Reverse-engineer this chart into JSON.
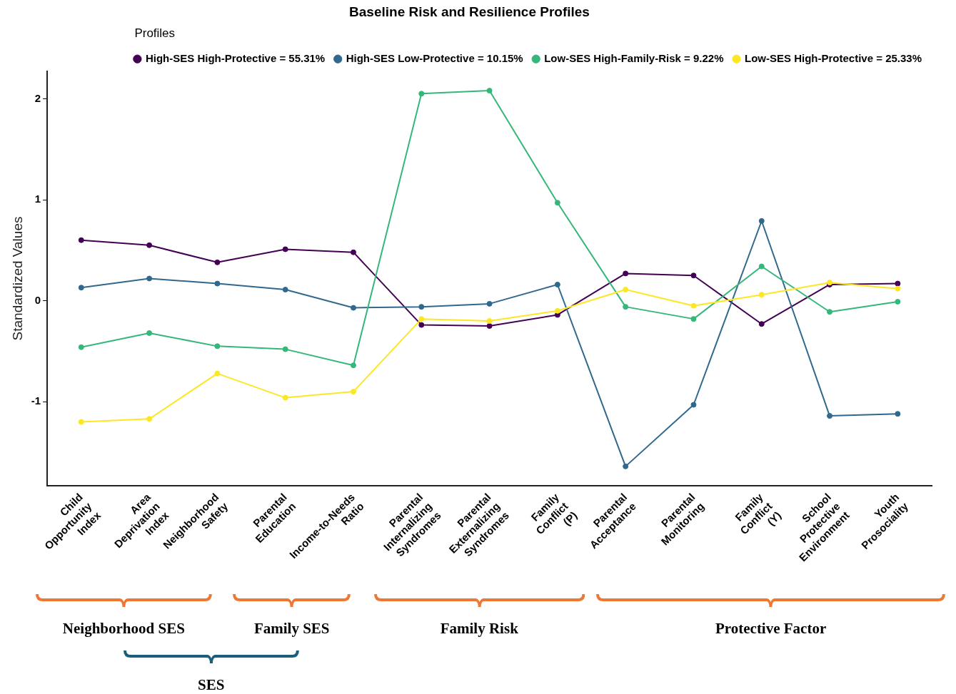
{
  "chart_data": {
    "type": "line",
    "title": "Baseline Risk and Resilience Profiles",
    "ylabel": "Standardized Values",
    "legend_title": "Profiles",
    "legend": "top",
    "grid": false,
    "marker": "circle",
    "line_style": "solid",
    "categories": [
      "Child Opportunity Index",
      "Area Deprivation Index",
      "Neighborhood Safety",
      "Parental Education",
      "Income-to-Needs Ratio",
      "Parental Internalizing Syndromes",
      "Parental Externalizing Syndromes",
      "Family Conflict (P)",
      "Parental Acceptance",
      "Parental Monitoring",
      "Family Conflict (Y)",
      "School Protective Environment",
      "Youth Prosociality"
    ],
    "ylim": [
      -1.83,
      2.27
    ],
    "yticks": [
      -1,
      0,
      1,
      2
    ],
    "series": [
      {
        "name": "High-SES High-Protective = 55.31%",
        "color": "#440154",
        "values": [
          0.6,
          0.55,
          0.38,
          0.51,
          0.48,
          -0.24,
          -0.25,
          -0.14,
          0.27,
          0.25,
          -0.23,
          0.16,
          0.17
        ]
      },
      {
        "name": "High-SES Low-Protective = 10.15%",
        "color": "#31688e",
        "values": [
          0.13,
          0.22,
          0.17,
          0.11,
          -0.07,
          -0.06,
          -0.03,
          0.16,
          -1.64,
          -1.03,
          0.79,
          -1.14,
          -1.12
        ]
      },
      {
        "name": "Low-SES High-Family-Risk = 9.22%",
        "color": "#35b779",
        "values": [
          -0.46,
          -0.32,
          -0.45,
          -0.48,
          -0.64,
          2.05,
          2.08,
          0.97,
          -0.06,
          -0.18,
          0.34,
          -0.11,
          -0.01
        ]
      },
      {
        "name": "Low-SES High-Protective = 25.33%",
        "color": "#fde725",
        "values": [
          -1.2,
          -1.17,
          -0.72,
          -0.96,
          -0.9,
          -0.18,
          -0.2,
          -0.1,
          0.11,
          -0.05,
          0.06,
          0.18,
          0.12
        ]
      }
    ],
    "annotations": [
      "Neighborhood SES",
      "Family SES",
      "Family Risk",
      "Protective Factor",
      "SES"
    ]
  }
}
